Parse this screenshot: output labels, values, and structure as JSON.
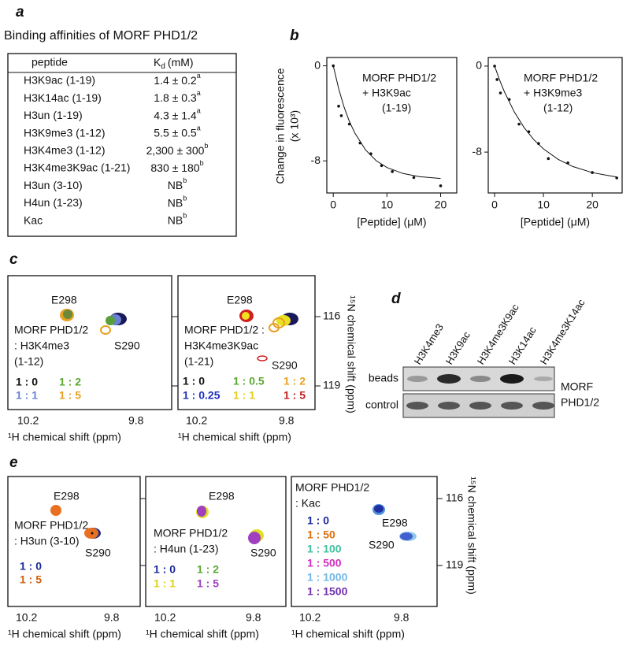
{
  "panel_a": {
    "label": "a",
    "title": "Binding affinities of  MORF PHD1/2",
    "header": {
      "peptide": "peptide",
      "kd": "K",
      "kd_sub": "d",
      "kd_unit": "(mM)"
    },
    "rows": [
      [
        "H3K9ac (1-19)",
        "1.4 ± 0.2",
        "a"
      ],
      [
        "H3K14ac (1-19)",
        "1.8 ± 0.3",
        "a"
      ],
      [
        "H3un (1-19)",
        "4.3 ± 1.4",
        "a"
      ],
      [
        "H3K9me3 (1-12)",
        "5.5 ± 0.5",
        "a"
      ],
      [
        "H3K4me3 (1-12)",
        "2,300 ± 300",
        "b"
      ],
      [
        "H3K4me3K9ac (1-21)",
        "830 ± 180",
        "b"
      ],
      [
        "H3un (3-10)",
        "NB",
        "b"
      ],
      [
        "H4un (1-23)",
        "NB",
        "b"
      ],
      [
        "Kac",
        "NB",
        "b"
      ]
    ]
  },
  "panel_b_label": "b",
  "chart_data": [
    {
      "type": "scatter",
      "ylabel": "Change in fluorescence",
      "ylabel2": "(x 10³)",
      "xlabel": "[Peptide] (μM)",
      "annotations": [
        "MORF PHD1/2",
        "+ H3K9ac",
        "(1-19)"
      ],
      "xlim": [
        -1.2,
        23
      ],
      "ylim": [
        -10.7,
        0.7
      ],
      "xticks": [
        0,
        10,
        20
      ],
      "yticks": [
        0,
        -8
      ],
      "series": [
        {
          "type": "scatter",
          "x": [
            0,
            1,
            1.5,
            3,
            5,
            7,
            9,
            11,
            15,
            20
          ],
          "values": [
            0,
            -3.4,
            -4.2,
            -4.9,
            -6.5,
            -7.4,
            -8.4,
            -8.9,
            -9.4,
            -10.1
          ]
        },
        {
          "type": "line",
          "x": [
            0,
            1,
            2,
            3,
            4,
            6,
            8,
            10,
            13,
            16,
            20
          ],
          "values": [
            0,
            -1.91,
            -3.45,
            -4.67,
            -5.65,
            -7.07,
            -7.98,
            -8.56,
            -9.06,
            -9.32,
            -9.48
          ]
        }
      ]
    },
    {
      "type": "scatter",
      "xlabel": "[Peptide] (μM)",
      "annotations": [
        "MORF PHD1/2",
        "+ H3K9me3",
        "(1-12)"
      ],
      "xlim": [
        -1.3,
        26.1
      ],
      "ylim": [
        -11.8,
        0.8
      ],
      "xticks": [
        0,
        10,
        20
      ],
      "yticks": [
        0,
        -8
      ],
      "series": [
        {
          "type": "scatter",
          "x": [
            0,
            0.5,
            1.2,
            3,
            5,
            7,
            9,
            11,
            15,
            20,
            25
          ],
          "values": [
            0,
            -1.25,
            -2.5,
            -3.1,
            -5.4,
            -6.1,
            -7.2,
            -8.6,
            -9,
            -9.9,
            -10.4
          ]
        },
        {
          "type": "line",
          "x": [
            0,
            1,
            2,
            4,
            6,
            8,
            10,
            13,
            16,
            20,
            25
          ],
          "values": [
            0,
            -1.27,
            -2.39,
            -4.24,
            -5.7,
            -6.83,
            -7.7,
            -8.67,
            -9.34,
            -9.91,
            -10.32
          ]
        }
      ]
    }
  ],
  "panel_c": {
    "label": "c",
    "yticks": [
      116,
      119
    ],
    "ylabel": "¹⁵N chemical shift (ppm)",
    "spectra": [
      {
        "peaks": [
          "E298",
          "S290"
        ],
        "lines": [
          "MORF PHD1/2",
          ": H3K4me3",
          "(1-12)"
        ],
        "ratios": [
          "1 : 0",
          "1 : 2",
          "1 : 1",
          "1 : 5"
        ],
        "xticks": [
          10.2,
          9.8
        ],
        "xlabel": "¹H chemical shift (ppm)"
      },
      {
        "peaks": [
          "E298",
          "S290"
        ],
        "lines": [
          "MORF PHD1/2 :",
          "H3K4me3K9ac",
          "(1-21)"
        ],
        "ratios": [
          "1 : 0",
          "1 : 0.5",
          "1 : 2",
          "1 : 0.25",
          "1 : 1",
          "1 : 5"
        ],
        "xticks": [
          10.2,
          9.8
        ],
        "xlabel": "¹H chemical shift (ppm)"
      }
    ]
  },
  "panel_d": {
    "label": "d",
    "lanes": [
      "H3K4me3",
      "H3K9ac",
      "H3K4me3K9ac",
      "H3K14ac",
      "H3K4me3K14ac"
    ],
    "rows": [
      "beads",
      "control"
    ],
    "protein": [
      "MORF",
      "PHD1/2"
    ]
  },
  "panel_e": {
    "label": "e",
    "yticks": [
      116,
      119
    ],
    "ylabel": "¹⁵N chemical shift (ppm)",
    "spectra": [
      {
        "peaks": [
          "E298",
          "S290"
        ],
        "lines": [
          "MORF PHD1/2",
          ": H3un (3-10)"
        ],
        "ratios": [
          "1 : 0",
          "1 : 5"
        ],
        "xticks": [
          10.2,
          9.8
        ],
        "xlabel": "¹H chemical shift (ppm)"
      },
      {
        "peaks": [
          "E298",
          "S290"
        ],
        "lines": [
          "MORF PHD1/2",
          ": H4un (1-23)"
        ],
        "ratios": [
          "1 : 0",
          "1 : 2",
          "1 : 1",
          "1 : 5"
        ],
        "xticks": [
          10.2,
          9.8
        ],
        "xlabel": "¹H chemical shift (ppm)"
      },
      {
        "peaks": [
          "E298",
          "S290"
        ],
        "lines": [
          "MORF PHD1/2",
          ": Kac"
        ],
        "ratios": [
          "1 : 0",
          "1 : 50",
          "1 : 100",
          "1 : 500",
          "1 : 1000",
          "1 : 1500"
        ],
        "xticks": [
          10.2,
          9.8
        ],
        "xlabel": "¹H chemical shift (ppm)"
      }
    ]
  }
}
